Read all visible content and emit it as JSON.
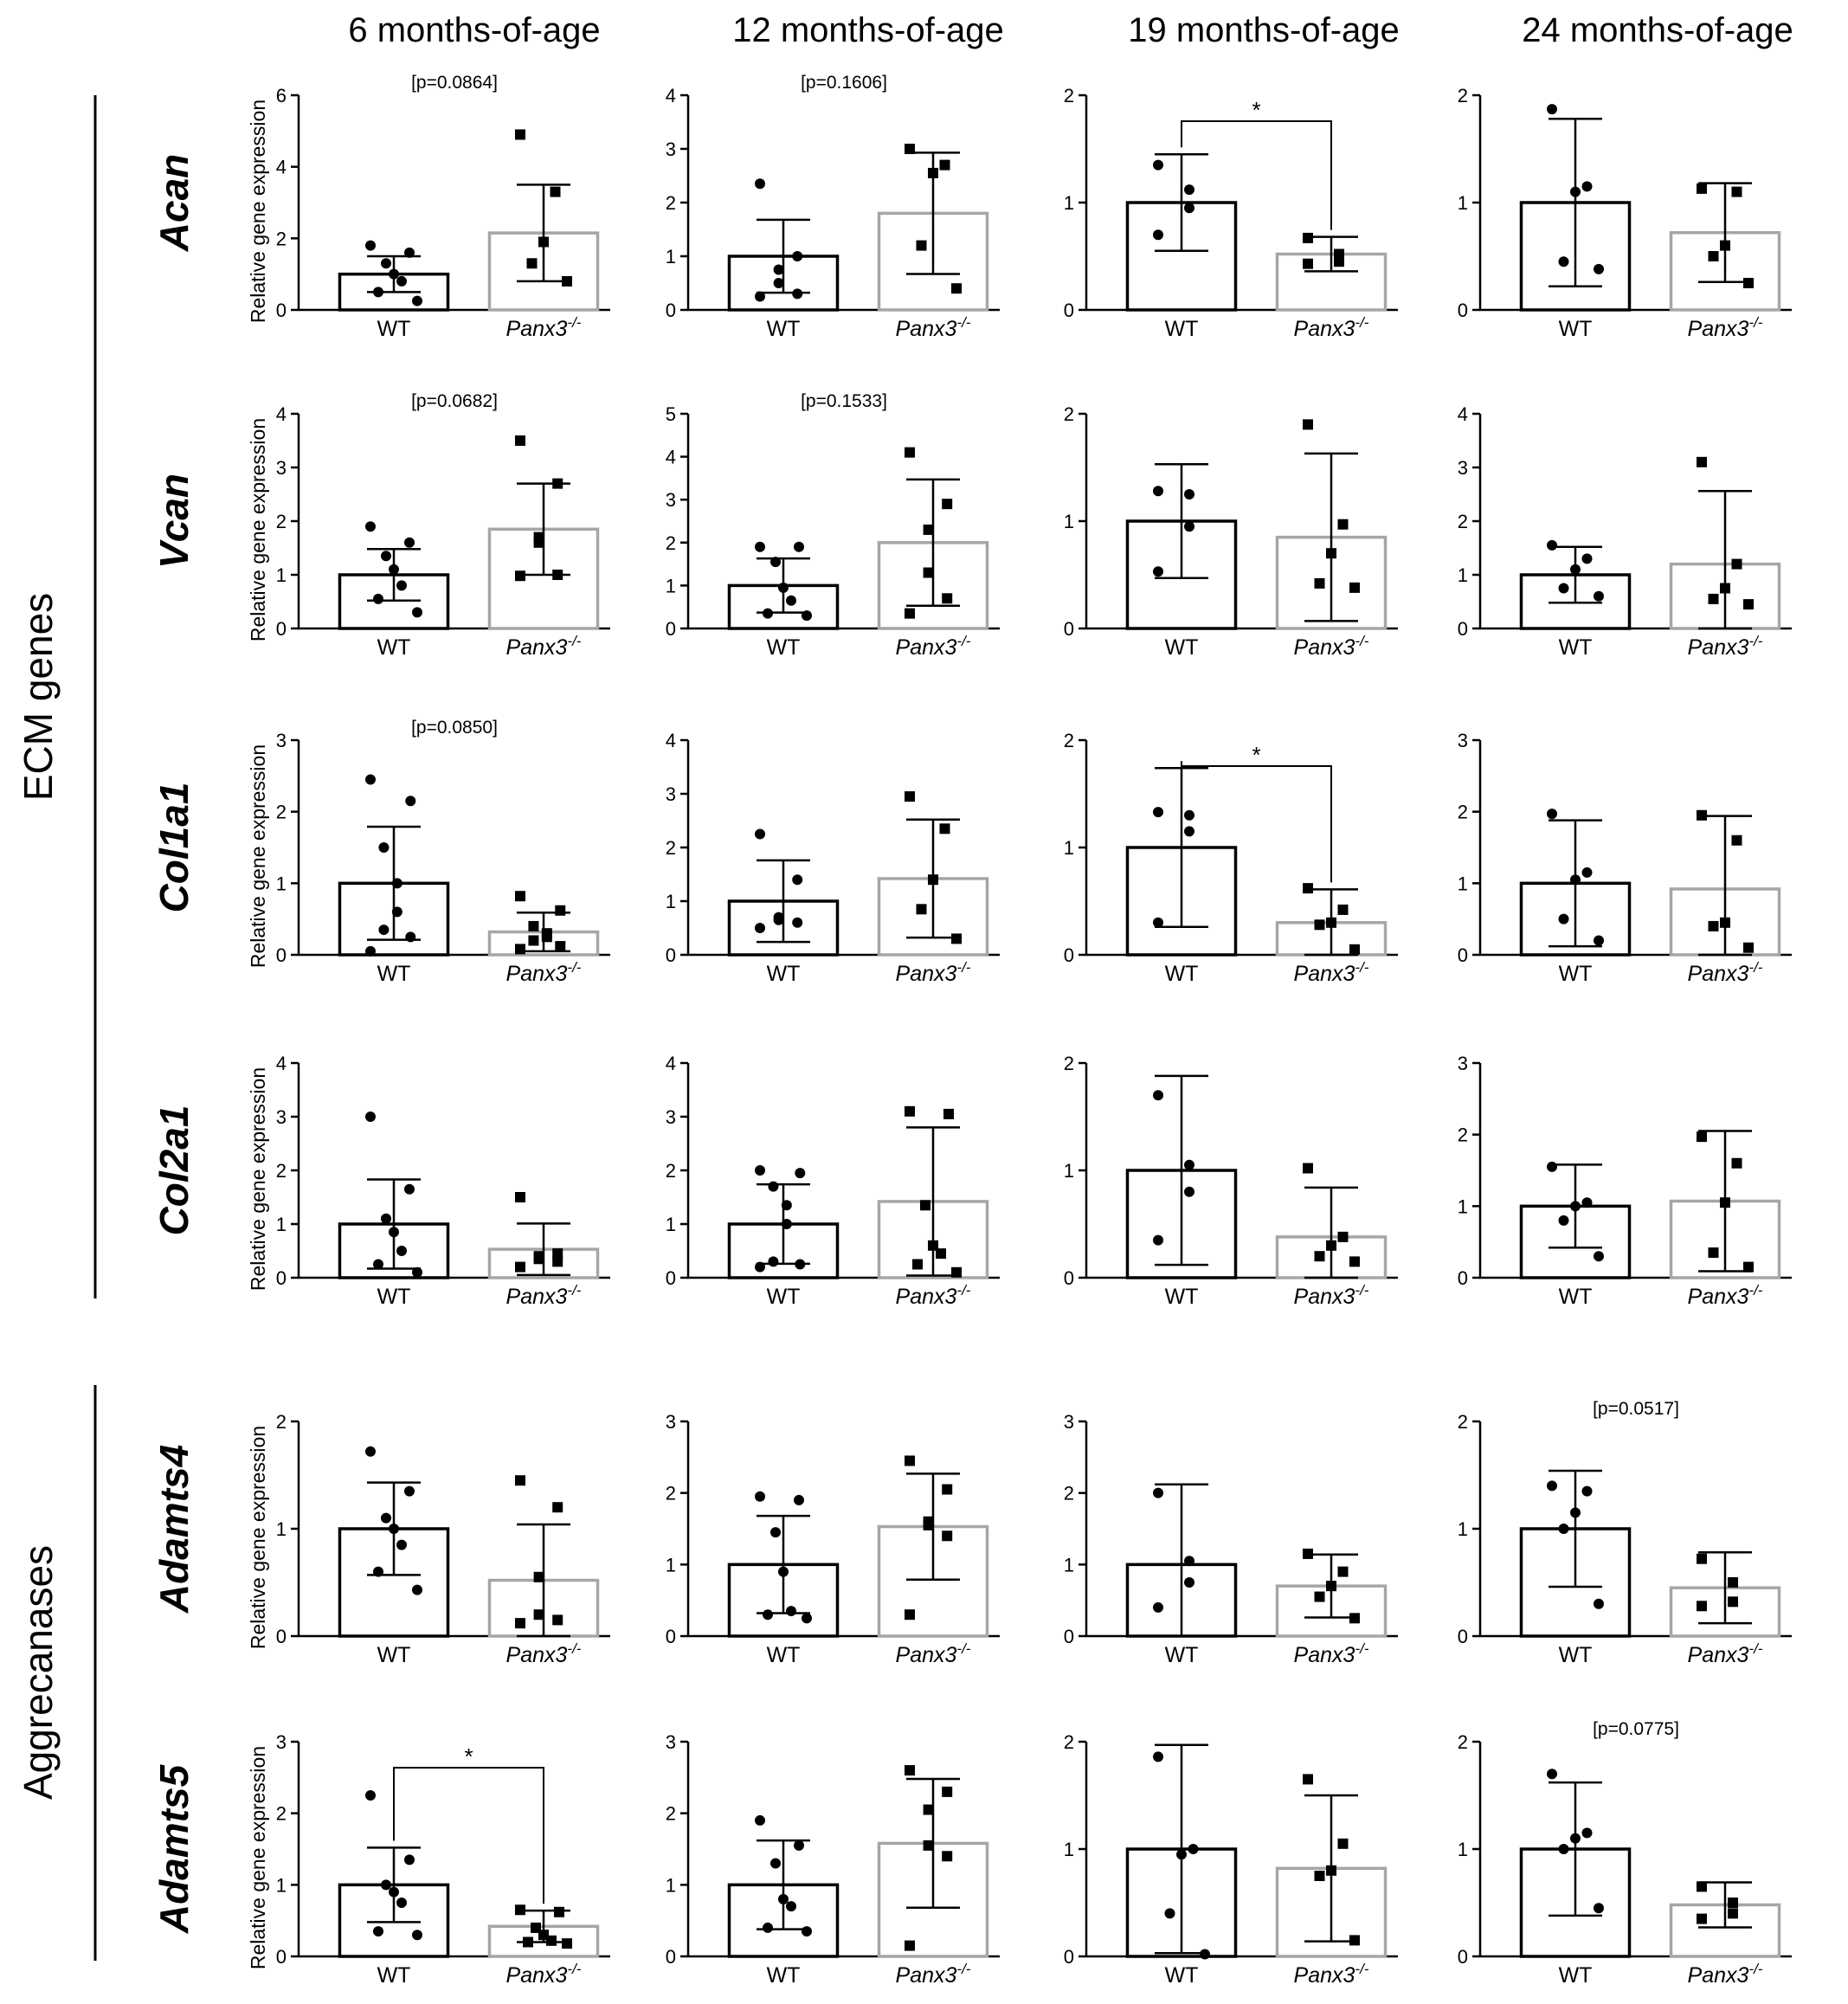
{
  "columns": [
    "6 months-of-age",
    "12 months-of-age",
    "19 months-of-age",
    "24 months-of-age"
  ],
  "groups": [
    {
      "label": "ECM genes",
      "rows": [
        0,
        1,
        2,
        3
      ]
    },
    {
      "label": "Aggrecanases",
      "rows": [
        4,
        5
      ]
    }
  ],
  "ylabel": "Relative gene expression",
  "categories": {
    "wt": "WT",
    "ko_base": "Panx3",
    "ko_sup": "-/-"
  },
  "colors": {
    "wt": "#000000",
    "ko": "#a6a6a6"
  },
  "chart_data": [
    {
      "gene": "Acan",
      "age": "6 months-of-age",
      "type": "bar",
      "ymax": 6,
      "ticks": [
        0,
        2,
        4,
        6
      ],
      "annotation": "[p=0.0864]",
      "significance": null,
      "wt": {
        "mean": 1.0,
        "sd": 0.5,
        "points": [
          1.8,
          1.6,
          1.3,
          1.0,
          0.8,
          0.5,
          0.25
        ]
      },
      "ko": {
        "mean": 2.15,
        "sd": 1.35,
        "points": [
          4.9,
          3.3,
          1.9,
          1.3,
          0.8
        ]
      }
    },
    {
      "gene": "Acan",
      "age": "12 months-of-age",
      "type": "bar",
      "ymax": 4,
      "ticks": [
        0,
        1,
        2,
        3,
        4
      ],
      "annotation": "[p=0.1606]",
      "significance": null,
      "wt": {
        "mean": 1.0,
        "sd": 0.68,
        "points": [
          2.35,
          1.0,
          0.75,
          0.5,
          0.3,
          0.25
        ]
      },
      "ko": {
        "mean": 1.8,
        "sd": 1.13,
        "points": [
          3.0,
          2.7,
          2.55,
          1.2,
          0.4
        ]
      }
    },
    {
      "gene": "Acan",
      "age": "19 months-of-age",
      "type": "bar",
      "ymax": 2,
      "ticks": [
        0,
        1,
        2
      ],
      "annotation": null,
      "significance": "*",
      "wt": {
        "mean": 1.0,
        "sd": 0.45,
        "points": [
          1.35,
          1.12,
          0.95,
          0.7
        ]
      },
      "ko": {
        "mean": 0.52,
        "sd": 0.16,
        "points": [
          0.67,
          0.52,
          0.45,
          0.43
        ]
      }
    },
    {
      "gene": "Acan",
      "age": "24 months-of-age",
      "type": "bar",
      "ymax": 2,
      "ticks": [
        0,
        1,
        2
      ],
      "annotation": null,
      "significance": null,
      "wt": {
        "mean": 1.0,
        "sd": 0.78,
        "points": [
          1.87,
          1.15,
          1.1,
          0.45,
          0.38
        ]
      },
      "ko": {
        "mean": 0.72,
        "sd": 0.46,
        "points": [
          1.13,
          1.1,
          0.6,
          0.5,
          0.25
        ]
      }
    },
    {
      "gene": "Vcan",
      "age": "6 months-of-age",
      "type": "bar",
      "ymax": 4,
      "ticks": [
        0,
        1,
        2,
        3,
        4
      ],
      "annotation": "[p=0.0682]",
      "significance": null,
      "wt": {
        "mean": 1.0,
        "sd": 0.48,
        "points": [
          1.9,
          1.6,
          1.35,
          1.1,
          0.8,
          0.55,
          0.3
        ]
      },
      "ko": {
        "mean": 1.85,
        "sd": 0.85,
        "points": [
          3.5,
          2.7,
          1.7,
          1.6,
          1.0,
          0.98
        ]
      }
    },
    {
      "gene": "Vcan",
      "age": "12 months-of-age",
      "type": "bar",
      "ymax": 5,
      "ticks": [
        0,
        1,
        2,
        3,
        4,
        5
      ],
      "annotation": "[p=0.1533]",
      "significance": null,
      "wt": {
        "mean": 1.0,
        "sd": 0.63,
        "points": [
          1.9,
          1.9,
          1.55,
          0.95,
          0.65,
          0.35,
          0.3
        ]
      },
      "ko": {
        "mean": 2.0,
        "sd": 1.47,
        "points": [
          4.1,
          2.9,
          2.3,
          1.3,
          0.7,
          0.35
        ]
      }
    },
    {
      "gene": "Vcan",
      "age": "19 months-of-age",
      "type": "bar",
      "ymax": 2,
      "ticks": [
        0,
        1,
        2
      ],
      "annotation": null,
      "significance": null,
      "wt": {
        "mean": 1.0,
        "sd": 0.53,
        "points": [
          1.28,
          1.25,
          0.95,
          0.53
        ]
      },
      "ko": {
        "mean": 0.85,
        "sd": 0.78,
        "points": [
          1.9,
          0.97,
          0.7,
          0.42,
          0.38
        ]
      }
    },
    {
      "gene": "Vcan",
      "age": "24 months-of-age",
      "type": "bar",
      "ymax": 4,
      "ticks": [
        0,
        1,
        2,
        3,
        4
      ],
      "annotation": null,
      "significance": null,
      "wt": {
        "mean": 1.0,
        "sd": 0.52,
        "points": [
          1.55,
          1.3,
          1.1,
          0.75,
          0.6
        ]
      },
      "ko": {
        "mean": 1.2,
        "sd": 1.36,
        "points": [
          3.1,
          1.2,
          0.75,
          0.55,
          0.45
        ]
      }
    },
    {
      "gene": "Col1a1",
      "age": "6 months-of-age",
      "type": "bar",
      "ymax": 3,
      "ticks": [
        0,
        1,
        2,
        3
      ],
      "annotation": "[p=0.0850]",
      "significance": null,
      "wt": {
        "mean": 1.0,
        "sd": 0.79,
        "points": [
          2.45,
          2.15,
          1.5,
          1.0,
          0.6,
          0.35,
          0.25,
          0.05
        ]
      },
      "ko": {
        "mean": 0.32,
        "sd": 0.27,
        "points": [
          0.82,
          0.62,
          0.4,
          0.3,
          0.25,
          0.2,
          0.12,
          0.08
        ]
      }
    },
    {
      "gene": "Col1a1",
      "age": "12 months-of-age",
      "type": "bar",
      "ymax": 4,
      "ticks": [
        0,
        1,
        2,
        3,
        4
      ],
      "annotation": null,
      "significance": null,
      "wt": {
        "mean": 1.0,
        "sd": 0.76,
        "points": [
          2.25,
          1.4,
          0.7,
          0.65,
          0.6,
          0.5
        ]
      },
      "ko": {
        "mean": 1.42,
        "sd": 1.1,
        "points": [
          2.95,
          2.35,
          1.4,
          0.85,
          0.3
        ]
      }
    },
    {
      "gene": "Col1a1",
      "age": "19 months-of-age",
      "type": "bar",
      "ymax": 2,
      "ticks": [
        0,
        1,
        2
      ],
      "annotation": null,
      "significance": "*",
      "wt": {
        "mean": 1.0,
        "sd": 0.74,
        "points": [
          1.33,
          1.3,
          1.15,
          0.3
        ]
      },
      "ko": {
        "mean": 0.3,
        "sd": 0.31,
        "points": [
          0.62,
          0.42,
          0.3,
          0.28,
          0.05
        ]
      }
    },
    {
      "gene": "Col1a1",
      "age": "24 months-of-age",
      "type": "bar",
      "ymax": 3,
      "ticks": [
        0,
        1,
        2,
        3
      ],
      "annotation": null,
      "significance": null,
      "wt": {
        "mean": 1.0,
        "sd": 0.88,
        "points": [
          1.97,
          1.15,
          1.05,
          0.5,
          0.2
        ]
      },
      "ko": {
        "mean": 0.92,
        "sd": 1.02,
        "points": [
          1.95,
          1.6,
          0.45,
          0.4,
          0.1
        ]
      }
    },
    {
      "gene": "Col2a1",
      "age": "6 months-of-age",
      "type": "bar",
      "ymax": 4,
      "ticks": [
        0,
        1,
        2,
        3,
        4
      ],
      "annotation": null,
      "significance": null,
      "wt": {
        "mean": 1.0,
        "sd": 0.83,
        "points": [
          3.0,
          1.65,
          1.1,
          0.85,
          0.5,
          0.25,
          0.1
        ]
      },
      "ko": {
        "mean": 0.53,
        "sd": 0.48,
        "points": [
          1.5,
          0.45,
          0.4,
          0.35,
          0.3,
          0.2
        ]
      }
    },
    {
      "gene": "Col2a1",
      "age": "12 months-of-age",
      "type": "bar",
      "ymax": 4,
      "ticks": [
        0,
        1,
        2,
        3,
        4
      ],
      "annotation": null,
      "significance": null,
      "wt": {
        "mean": 1.0,
        "sd": 0.74,
        "points": [
          2.0,
          1.95,
          1.7,
          1.35,
          1.0,
          0.3,
          0.25,
          0.2
        ]
      },
      "ko": {
        "mean": 1.42,
        "sd": 1.38,
        "points": [
          3.1,
          3.05,
          1.35,
          0.6,
          0.45,
          0.25,
          0.1
        ]
      }
    },
    {
      "gene": "Col2a1",
      "age": "19 months-of-age",
      "type": "bar",
      "ymax": 2,
      "ticks": [
        0,
        1,
        2
      ],
      "annotation": null,
      "significance": null,
      "wt": {
        "mean": 1.0,
        "sd": 0.88,
        "points": [
          1.7,
          1.05,
          0.8,
          0.35
        ]
      },
      "ko": {
        "mean": 0.38,
        "sd": 0.46,
        "points": [
          1.02,
          0.38,
          0.3,
          0.2,
          0.15
        ]
      }
    },
    {
      "gene": "Col2a1",
      "age": "24 months-of-age",
      "type": "bar",
      "ymax": 3,
      "ticks": [
        0,
        1,
        2,
        3
      ],
      "annotation": null,
      "significance": null,
      "wt": {
        "mean": 1.0,
        "sd": 0.58,
        "points": [
          1.55,
          1.05,
          1.0,
          0.8,
          0.3
        ]
      },
      "ko": {
        "mean": 1.07,
        "sd": 0.98,
        "points": [
          1.97,
          1.6,
          1.05,
          0.35,
          0.15
        ]
      }
    },
    {
      "gene": "Adamts4",
      "age": "6 months-of-age",
      "type": "bar",
      "ymax": 2,
      "ticks": [
        0,
        1,
        2
      ],
      "annotation": null,
      "significance": null,
      "wt": {
        "mean": 1.0,
        "sd": 0.43,
        "points": [
          1.72,
          1.35,
          1.1,
          1.0,
          0.85,
          0.6,
          0.43
        ]
      },
      "ko": {
        "mean": 0.52,
        "sd": 0.52,
        "points": [
          1.45,
          1.2,
          0.55,
          0.2,
          0.15,
          0.12
        ]
      }
    },
    {
      "gene": "Adamts4",
      "age": "12 months-of-age",
      "type": "bar",
      "ymax": 3,
      "ticks": [
        0,
        1,
        2,
        3
      ],
      "annotation": null,
      "significance": null,
      "wt": {
        "mean": 1.0,
        "sd": 0.68,
        "points": [
          1.95,
          1.9,
          1.45,
          0.9,
          0.35,
          0.3,
          0.25
        ]
      },
      "ko": {
        "mean": 1.53,
        "sd": 0.74,
        "points": [
          2.45,
          2.05,
          1.6,
          1.55,
          1.4,
          0.3
        ]
      }
    },
    {
      "gene": "Adamts4",
      "age": "19 months-of-age",
      "type": "bar",
      "ymax": 3,
      "ticks": [
        0,
        1,
        2,
        3
      ],
      "annotation": null,
      "significance": null,
      "wt": {
        "mean": 1.0,
        "sd": 1.12,
        "points": [
          2.0,
          1.05,
          0.75,
          0.4
        ]
      },
      "ko": {
        "mean": 0.7,
        "sd": 0.44,
        "points": [
          1.15,
          0.9,
          0.7,
          0.55,
          0.25
        ]
      }
    },
    {
      "gene": "Adamts4",
      "age": "24 months-of-age",
      "type": "bar",
      "ymax": 2,
      "ticks": [
        0,
        1,
        2
      ],
      "annotation": "[p=0.0517]",
      "significance": null,
      "wt": {
        "mean": 1.0,
        "sd": 0.54,
        "points": [
          1.4,
          1.35,
          1.15,
          1.0,
          0.3
        ]
      },
      "ko": {
        "mean": 0.45,
        "sd": 0.33,
        "points": [
          0.72,
          0.5,
          0.32,
          0.28
        ]
      }
    },
    {
      "gene": "Adamts5",
      "age": "6 months-of-age",
      "type": "bar",
      "ymax": 3,
      "ticks": [
        0,
        1,
        2,
        3
      ],
      "annotation": null,
      "significance": "*",
      "wt": {
        "mean": 1.0,
        "sd": 0.52,
        "points": [
          2.25,
          1.35,
          1.0,
          0.9,
          0.75,
          0.35,
          0.3
        ]
      },
      "ko": {
        "mean": 0.42,
        "sd": 0.22,
        "points": [
          0.65,
          0.62,
          0.4,
          0.3,
          0.22,
          0.2,
          0.18
        ]
      }
    },
    {
      "gene": "Adamts5",
      "age": "12 months-of-age",
      "type": "bar",
      "ymax": 3,
      "ticks": [
        0,
        1,
        2,
        3
      ],
      "annotation": null,
      "significance": null,
      "wt": {
        "mean": 1.0,
        "sd": 0.62,
        "points": [
          1.9,
          1.55,
          1.3,
          0.8,
          0.7,
          0.4,
          0.35
        ]
      },
      "ko": {
        "mean": 1.58,
        "sd": 0.9,
        "points": [
          2.6,
          2.3,
          2.05,
          1.55,
          1.4,
          0.15
        ]
      }
    },
    {
      "gene": "Adamts5",
      "age": "19 months-of-age",
      "type": "bar",
      "ymax": 2,
      "ticks": [
        0,
        1,
        2
      ],
      "annotation": null,
      "significance": null,
      "wt": {
        "mean": 1.0,
        "sd": 0.97,
        "points": [
          1.86,
          1.0,
          0.95,
          0.4,
          0.02
        ]
      },
      "ko": {
        "mean": 0.82,
        "sd": 0.68,
        "points": [
          1.65,
          1.05,
          0.8,
          0.75,
          0.15
        ]
      }
    },
    {
      "gene": "Adamts5",
      "age": "24 months-of-age",
      "type": "bar",
      "ymax": 2,
      "ticks": [
        0,
        1,
        2
      ],
      "annotation": "[p=0.0775]",
      "significance": null,
      "wt": {
        "mean": 1.0,
        "sd": 0.62,
        "points": [
          1.7,
          1.15,
          1.1,
          1.0,
          0.45
        ]
      },
      "ko": {
        "mean": 0.48,
        "sd": 0.21,
        "points": [
          0.65,
          0.5,
          0.4,
          0.35
        ]
      }
    }
  ]
}
